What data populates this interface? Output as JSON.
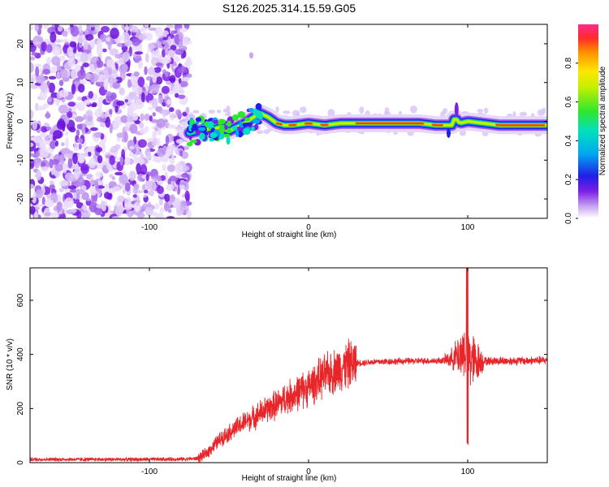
{
  "title": "S126.2025.314.15.59.G05",
  "chart_data": [
    {
      "type": "heatmap",
      "panel": "spectrogram",
      "xlabel": "Height of straight line (km)",
      "ylabel": "Frequency (Hz)",
      "xlim": [
        -175,
        150
      ],
      "ylim": [
        -25,
        25
      ],
      "xticks": [
        -100,
        0,
        100
      ],
      "xtick_labels": [
        "-100",
        "0",
        "100"
      ],
      "yticks": [
        -20,
        -10,
        0,
        10,
        20
      ],
      "ytick_labels": [
        "-20",
        "-10",
        "0",
        "10",
        "20"
      ],
      "noise_region_x": [
        -175,
        -75
      ],
      "ridge": {
        "x": [
          -75,
          -70,
          -65,
          -60,
          -55,
          -50,
          -45,
          -40,
          -35,
          -30,
          -25,
          -20,
          -15,
          -10,
          0,
          10,
          20,
          40,
          60,
          70,
          80,
          85,
          90,
          92,
          95,
          100,
          110,
          120,
          130,
          140,
          150
        ],
        "y": [
          -3,
          -2.5,
          -2,
          -2,
          -1.5,
          -2.5,
          -1.5,
          -0.5,
          1,
          2,
          1,
          -0.5,
          -1,
          -1,
          -0.5,
          -1,
          -0.5,
          -0.5,
          -0.5,
          -0.5,
          -1,
          -1,
          -1,
          1,
          -0.5,
          0,
          -0.5,
          -1,
          -1,
          -1,
          -1
        ]
      },
      "colorbar": {
        "label": "Normalized spectral amplitude",
        "range": [
          0,
          1
        ],
        "ticks": [
          0.0,
          0.2,
          0.4,
          0.6,
          0.8
        ],
        "tick_labels": [
          "0.0",
          "0.2",
          "0.4",
          "0.6",
          "0.8"
        ]
      }
    },
    {
      "type": "line",
      "panel": "snr",
      "xlabel": "Height of straight line (km)",
      "ylabel": "SNR (10 * v/v)",
      "xlim": [
        -175,
        150
      ],
      "ylim": [
        0,
        720
      ],
      "xticks": [
        -100,
        0,
        100
      ],
      "xtick_labels": [
        "-100",
        "0",
        "100"
      ],
      "yticks": [
        0,
        200,
        400,
        600
      ],
      "ytick_labels": [
        "0",
        "200",
        "400",
        "600"
      ],
      "color": "#e8262a",
      "series": [
        {
          "name": "SNR",
          "x": [
            -175,
            -150,
            -125,
            -100,
            -80,
            -70,
            -65,
            -60,
            -55,
            -50,
            -45,
            -40,
            -35,
            -30,
            -25,
            -20,
            -15,
            -10,
            -5,
            0,
            5,
            10,
            15,
            20,
            25,
            30,
            40,
            50,
            60,
            70,
            80,
            85,
            90,
            95,
            98,
            100,
            102,
            105,
            110,
            120,
            130,
            140,
            150
          ],
          "values": [
            12,
            12,
            12,
            12,
            13,
            15,
            30,
            60,
            90,
            110,
            130,
            150,
            165,
            185,
            200,
            215,
            235,
            250,
            265,
            280,
            300,
            320,
            335,
            350,
            362,
            368,
            372,
            374,
            375,
            376,
            376,
            378,
            385,
            400,
            420,
            400,
            380,
            375,
            375,
            376,
            376,
            377,
            378
          ]
        }
      ]
    }
  ]
}
